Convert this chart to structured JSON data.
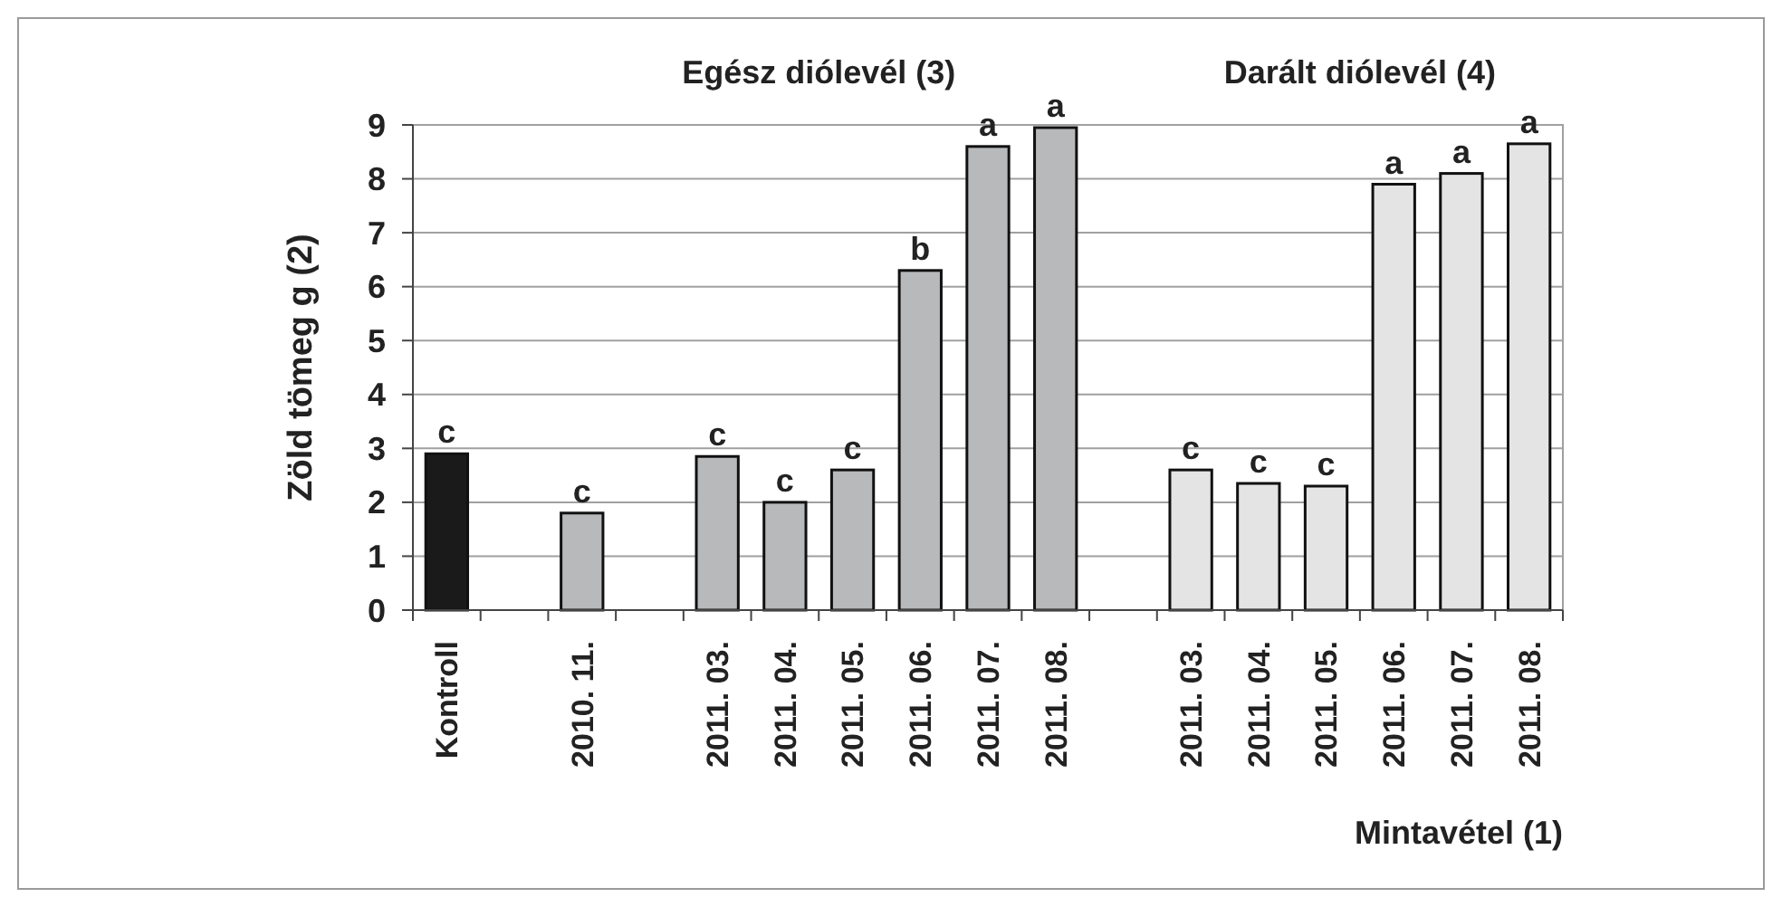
{
  "chart_data": {
    "type": "bar",
    "xlabel": "Mintavétel (1)",
    "ylabel": "Zöld tömeg g (2)",
    "categories": [
      "Kontroll",
      null,
      "2010. 11.",
      null,
      "2011. 03.",
      "2011. 04.",
      "2011. 05.",
      "2011. 06.",
      "2011. 07.",
      "2011. 08.",
      null,
      "2011. 03.",
      "2011. 04.",
      "2011. 05.",
      "2011. 06.",
      "2011. 07.",
      "2011. 08."
    ],
    "series": [
      {
        "color": "#1a1a1a",
        "values": [
          2.9,
          null,
          null,
          null,
          null,
          null,
          null,
          null,
          null,
          null,
          null,
          null,
          null,
          null,
          null,
          null,
          null
        ],
        "value_labels": [
          "c",
          null,
          null,
          null,
          null,
          null,
          null,
          null,
          null,
          null,
          null,
          null,
          null,
          null,
          null,
          null,
          null
        ]
      },
      {
        "name": "Egész diólevél (3)",
        "color": "#b8b9bb",
        "values": [
          null,
          null,
          1.8,
          null,
          2.85,
          2.0,
          2.6,
          6.3,
          8.6,
          8.95,
          null,
          null,
          null,
          null,
          null,
          null,
          null
        ],
        "value_labels": [
          null,
          null,
          "c",
          null,
          "c",
          "c",
          "c",
          "b",
          "a",
          "a",
          null,
          null,
          null,
          null,
          null,
          null,
          null
        ]
      },
      {
        "name": "Darált diólevél (4)",
        "color": "#e4e4e4",
        "values": [
          null,
          null,
          null,
          null,
          null,
          null,
          null,
          null,
          null,
          null,
          null,
          2.6,
          2.35,
          2.3,
          7.9,
          8.1,
          8.65
        ],
        "value_labels": [
          null,
          null,
          null,
          null,
          null,
          null,
          null,
          null,
          null,
          null,
          null,
          "c",
          "c",
          "c",
          "a",
          "a",
          "a"
        ]
      }
    ],
    "ylim": [
      0,
      9
    ],
    "yticks": [
      0,
      1,
      2,
      3,
      4,
      5,
      6,
      7,
      8,
      9
    ],
    "grid": "y"
  }
}
